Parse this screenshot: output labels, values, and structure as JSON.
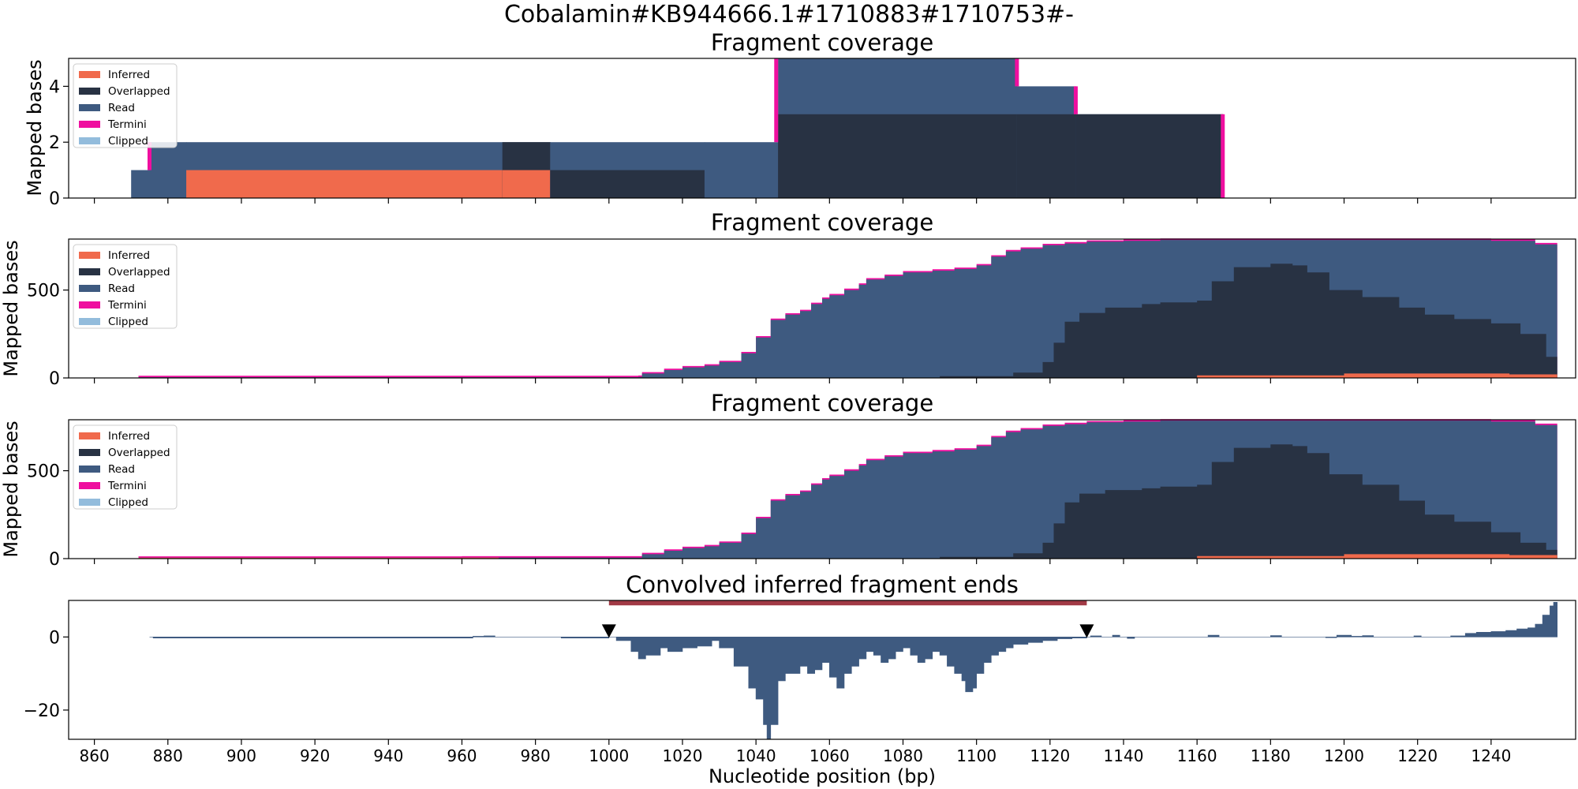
{
  "figure": {
    "suptitle": "Cobalamin#KB944666.1#1710883#1710753#-"
  },
  "colors": {
    "inferred": "#f06a4c",
    "overlapped": "#283243",
    "read": "#3e5a80",
    "termini": "#ef0f9f",
    "clipped": "#93bcdc",
    "bar": "#a13a45",
    "marker": "#000000"
  },
  "chart_data": [
    {
      "type": "area",
      "title": "Fragment coverage",
      "ylabel": "Mapped bases",
      "xlim": [
        853,
        1263
      ],
      "ylim": [
        0,
        5
      ],
      "yticks": [
        0,
        2,
        4
      ],
      "legend": {
        "position": "top-left",
        "entries": [
          "Inferred",
          "Overlapped",
          "Read",
          "Termini",
          "Clipped"
        ]
      },
      "segments": [
        {
          "x0": 870,
          "x1": 875,
          "levels": {
            "overlapped": 0,
            "inferred": 0,
            "read": 1
          }
        },
        {
          "x0": 875,
          "x1": 885,
          "levels": {
            "overlapped": 0,
            "inferred": 0,
            "read": 2
          }
        },
        {
          "x0": 885,
          "x1": 971,
          "levels": {
            "overlapped": 0,
            "inferred": 1,
            "read": 2
          }
        },
        {
          "x0": 971,
          "x1": 984,
          "levels": {
            "overlapped": 2,
            "inferred": 1,
            "read": 2
          }
        },
        {
          "x0": 984,
          "x1": 1026,
          "levels": {
            "overlapped": 1,
            "inferred": 0,
            "read": 2
          }
        },
        {
          "x0": 1026,
          "x1": 1046,
          "levels": {
            "overlapped": 0,
            "inferred": 0,
            "read": 2
          }
        },
        {
          "x0": 1046,
          "x1": 1111,
          "levels": {
            "overlapped": 3,
            "inferred": 0,
            "read": 5
          }
        },
        {
          "x0": 1111,
          "x1": 1127,
          "levels": {
            "overlapped": 3,
            "inferred": 0,
            "read": 4
          }
        },
        {
          "x0": 1127,
          "x1": 1167,
          "levels": {
            "overlapped": 3,
            "inferred": 0,
            "read": 3
          }
        }
      ],
      "termini": [
        {
          "x": 875,
          "y0": 1,
          "y1": 2
        },
        {
          "x": 1045.5,
          "y0": 2,
          "y1": 5
        },
        {
          "x": 1111,
          "y0": 4,
          "y1": 5
        },
        {
          "x": 1127,
          "y0": 3,
          "y1": 4
        },
        {
          "x": 1167,
          "y0": 0,
          "y1": 3
        }
      ]
    },
    {
      "type": "area",
      "title": "Fragment coverage",
      "ylabel": "Mapped bases",
      "xlim": [
        853,
        1263
      ],
      "ylim": [
        0,
        790
      ],
      "yticks": [
        0,
        500
      ],
      "legend": {
        "position": "top-left",
        "entries": [
          "Inferred",
          "Overlapped",
          "Read",
          "Termini",
          "Clipped"
        ]
      },
      "read_curve": [
        [
          872,
          4
        ],
        [
          960,
          4
        ],
        [
          1008,
          6
        ],
        [
          1009,
          25
        ],
        [
          1015,
          45
        ],
        [
          1020,
          60
        ],
        [
          1026,
          70
        ],
        [
          1030,
          90
        ],
        [
          1036,
          140
        ],
        [
          1040,
          230
        ],
        [
          1044,
          330
        ],
        [
          1048,
          360
        ],
        [
          1052,
          380
        ],
        [
          1055,
          420
        ],
        [
          1058,
          450
        ],
        [
          1060,
          470
        ],
        [
          1064,
          500
        ],
        [
          1068,
          530
        ],
        [
          1070,
          560
        ],
        [
          1075,
          580
        ],
        [
          1080,
          600
        ],
        [
          1088,
          610
        ],
        [
          1094,
          620
        ],
        [
          1100,
          640
        ],
        [
          1104,
          690
        ],
        [
          1108,
          720
        ],
        [
          1112,
          735
        ],
        [
          1118,
          755
        ],
        [
          1124,
          765
        ],
        [
          1130,
          775
        ],
        [
          1140,
          780
        ],
        [
          1150,
          785
        ],
        [
          1200,
          785
        ],
        [
          1240,
          780
        ],
        [
          1252,
          760
        ],
        [
          1258,
          735
        ]
      ],
      "overlapped_curve": [
        [
          872,
          0
        ],
        [
          1050,
          0
        ],
        [
          1090,
          10
        ],
        [
          1110,
          30
        ],
        [
          1118,
          90
        ],
        [
          1121,
          200
        ],
        [
          1124,
          320
        ],
        [
          1128,
          370
        ],
        [
          1135,
          400
        ],
        [
          1145,
          420
        ],
        [
          1150,
          430
        ],
        [
          1160,
          440
        ],
        [
          1164,
          550
        ],
        [
          1170,
          630
        ],
        [
          1180,
          650
        ],
        [
          1186,
          640
        ],
        [
          1190,
          600
        ],
        [
          1196,
          500
        ],
        [
          1205,
          460
        ],
        [
          1215,
          400
        ],
        [
          1222,
          360
        ],
        [
          1230,
          335
        ],
        [
          1240,
          310
        ],
        [
          1248,
          250
        ],
        [
          1255,
          120
        ],
        [
          1258,
          80
        ]
      ],
      "inferred_curve": [
        [
          1140,
          0
        ],
        [
          1160,
          15
        ],
        [
          1200,
          25
        ],
        [
          1230,
          25
        ],
        [
          1245,
          20
        ],
        [
          1258,
          15
        ]
      ]
    },
    {
      "type": "area",
      "title": "Fragment coverage",
      "ylabel": "Mapped bases",
      "xlim": [
        853,
        1263
      ],
      "ylim": [
        0,
        790
      ],
      "yticks": [
        0,
        500
      ],
      "legend": {
        "position": "top-left",
        "entries": [
          "Inferred",
          "Overlapped",
          "Read",
          "Termini",
          "Clipped"
        ]
      },
      "read_curve": [
        [
          872,
          5
        ],
        [
          960,
          6
        ],
        [
          1008,
          6
        ],
        [
          1009,
          25
        ],
        [
          1015,
          45
        ],
        [
          1020,
          60
        ],
        [
          1026,
          70
        ],
        [
          1030,
          90
        ],
        [
          1036,
          140
        ],
        [
          1040,
          230
        ],
        [
          1044,
          330
        ],
        [
          1048,
          360
        ],
        [
          1052,
          380
        ],
        [
          1055,
          420
        ],
        [
          1058,
          450
        ],
        [
          1060,
          470
        ],
        [
          1064,
          500
        ],
        [
          1068,
          530
        ],
        [
          1070,
          560
        ],
        [
          1075,
          580
        ],
        [
          1080,
          600
        ],
        [
          1088,
          610
        ],
        [
          1094,
          620
        ],
        [
          1100,
          640
        ],
        [
          1104,
          690
        ],
        [
          1108,
          720
        ],
        [
          1112,
          735
        ],
        [
          1118,
          755
        ],
        [
          1124,
          765
        ],
        [
          1130,
          775
        ],
        [
          1140,
          780
        ],
        [
          1150,
          785
        ],
        [
          1200,
          785
        ],
        [
          1240,
          780
        ],
        [
          1252,
          760
        ],
        [
          1258,
          735
        ]
      ],
      "overlapped_curve": [
        [
          872,
          0
        ],
        [
          1050,
          0
        ],
        [
          1090,
          10
        ],
        [
          1110,
          30
        ],
        [
          1118,
          90
        ],
        [
          1121,
          200
        ],
        [
          1124,
          320
        ],
        [
          1128,
          370
        ],
        [
          1135,
          390
        ],
        [
          1145,
          400
        ],
        [
          1150,
          410
        ],
        [
          1160,
          420
        ],
        [
          1164,
          550
        ],
        [
          1170,
          630
        ],
        [
          1180,
          650
        ],
        [
          1186,
          640
        ],
        [
          1190,
          600
        ],
        [
          1196,
          480
        ],
        [
          1205,
          420
        ],
        [
          1215,
          330
        ],
        [
          1222,
          250
        ],
        [
          1230,
          210
        ],
        [
          1240,
          150
        ],
        [
          1248,
          90
        ],
        [
          1255,
          50
        ],
        [
          1258,
          40
        ]
      ],
      "inferred_curve": [
        [
          872,
          5
        ],
        [
          960,
          6
        ],
        [
          970,
          0
        ],
        [
          1140,
          0
        ],
        [
          1160,
          15
        ],
        [
          1200,
          25
        ],
        [
          1230,
          25
        ],
        [
          1245,
          20
        ],
        [
          1258,
          15
        ]
      ]
    },
    {
      "type": "bar",
      "title": "Convolved inferred fragment ends",
      "ylabel": "",
      "xlabel": "Nucleotide position (bp)",
      "xlim": [
        853,
        1263
      ],
      "ylim": [
        -28,
        10
      ],
      "yticks": [
        -20,
        0
      ],
      "xticks": [
        860,
        880,
        900,
        920,
        940,
        960,
        980,
        1000,
        1020,
        1040,
        1060,
        1080,
        1100,
        1120,
        1140,
        1160,
        1180,
        1200,
        1220,
        1240
      ],
      "signal": [
        [
          875,
          0
        ],
        [
          876,
          -0.3
        ],
        [
          963,
          0.2
        ],
        [
          966,
          0.3
        ],
        [
          969,
          0
        ],
        [
          987,
          -0.3
        ],
        [
          1000,
          0
        ],
        [
          1002,
          -1
        ],
        [
          1006,
          -4
        ],
        [
          1008,
          -6
        ],
        [
          1010,
          -5
        ],
        [
          1014,
          -3
        ],
        [
          1016,
          -4
        ],
        [
          1020,
          -3
        ],
        [
          1024,
          -2.5
        ],
        [
          1028,
          -1
        ],
        [
          1030,
          -3
        ],
        [
          1034,
          -8
        ],
        [
          1038,
          -14
        ],
        [
          1040,
          -17
        ],
        [
          1042,
          -24
        ],
        [
          1043,
          -28
        ],
        [
          1044,
          -24
        ],
        [
          1046,
          -12
        ],
        [
          1048,
          -10
        ],
        [
          1052,
          -8
        ],
        [
          1054,
          -10
        ],
        [
          1056,
          -9
        ],
        [
          1058,
          -7
        ],
        [
          1060,
          -11
        ],
        [
          1062,
          -14
        ],
        [
          1064,
          -10
        ],
        [
          1066,
          -8
        ],
        [
          1068,
          -6
        ],
        [
          1070,
          -4
        ],
        [
          1072,
          -5
        ],
        [
          1074,
          -7
        ],
        [
          1076,
          -6
        ],
        [
          1078,
          -4
        ],
        [
          1080,
          -3
        ],
        [
          1082,
          -5
        ],
        [
          1084,
          -7
        ],
        [
          1086,
          -6
        ],
        [
          1088,
          -4
        ],
        [
          1090,
          -5
        ],
        [
          1092,
          -8
        ],
        [
          1094,
          -10
        ],
        [
          1096,
          -12
        ],
        [
          1097,
          -15
        ],
        [
          1099,
          -14
        ],
        [
          1100,
          -10
        ],
        [
          1102,
          -7
        ],
        [
          1104,
          -5
        ],
        [
          1106,
          -4
        ],
        [
          1108,
          -3
        ],
        [
          1110,
          -2
        ],
        [
          1114,
          -1.5
        ],
        [
          1118,
          -1
        ],
        [
          1122,
          -0.5
        ],
        [
          1126,
          -0.3
        ],
        [
          1130,
          0
        ],
        [
          1131,
          0.3
        ],
        [
          1134,
          0
        ],
        [
          1137,
          0.5
        ],
        [
          1139,
          0
        ],
        [
          1141,
          -0.4
        ],
        [
          1143,
          0
        ],
        [
          1163,
          0.5
        ],
        [
          1166,
          0
        ],
        [
          1180,
          0.4
        ],
        [
          1183,
          0
        ],
        [
          1195,
          -0.2
        ],
        [
          1198,
          0.5
        ],
        [
          1202,
          0.2
        ],
        [
          1205,
          0.4
        ],
        [
          1208,
          0
        ],
        [
          1219,
          0.3
        ],
        [
          1221,
          0
        ],
        [
          1229,
          0.3
        ],
        [
          1233,
          1
        ],
        [
          1236,
          1.3
        ],
        [
          1240,
          1.5
        ],
        [
          1244,
          1.8
        ],
        [
          1247,
          2.2
        ],
        [
          1250,
          2.5
        ],
        [
          1252,
          3.5
        ],
        [
          1254,
          6
        ],
        [
          1256,
          8.5
        ],
        [
          1257,
          9.5
        ],
        [
          1258,
          0
        ]
      ],
      "markers": [
        1000,
        1130
      ],
      "interval": [
        1000,
        1130
      ],
      "interval_y": 9.3
    }
  ]
}
